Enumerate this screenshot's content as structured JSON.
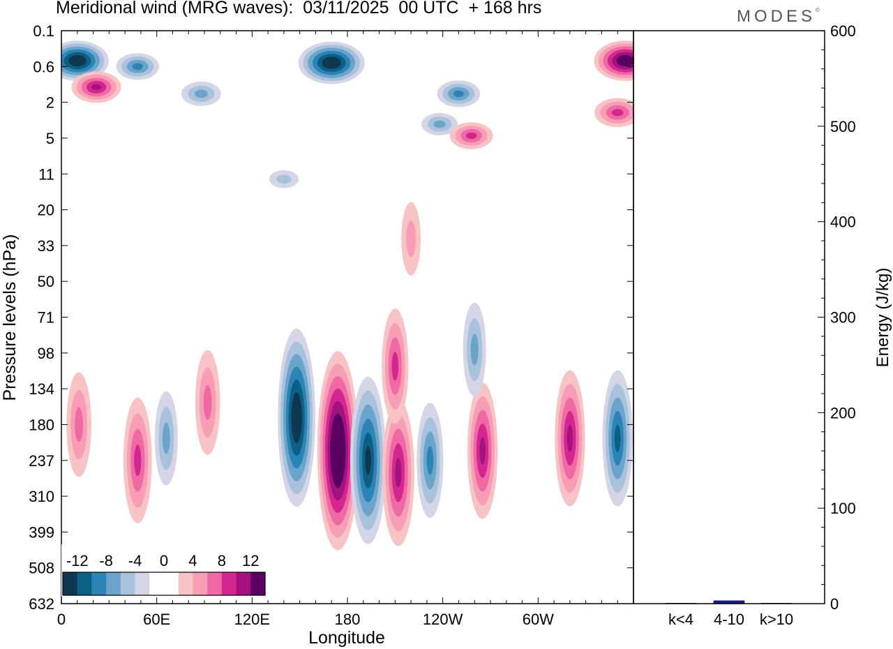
{
  "title": "Meridional wind (MRG waves):  03/11/2025  00 UTC  + 168 hrs",
  "logo": "MODES",
  "chart_data": [
    {
      "type": "heatmap",
      "title": "Meridional wind (MRG waves):  03/11/2025  00 UTC  + 168 hrs",
      "xlabel": "Longitude",
      "ylabel": "Pressure levels (hPa)",
      "x_ticks": [
        "0",
        "60E",
        "120E",
        "180",
        "120W",
        "60W"
      ],
      "x_tick_values": [
        0,
        60,
        120,
        180,
        240,
        300
      ],
      "xlim": [
        0,
        360
      ],
      "y_ticks": [
        "0.1",
        "0.6",
        "2",
        "5",
        "11",
        "20",
        "33",
        "50",
        "71",
        "98",
        "134",
        "180",
        "237",
        "310",
        "399",
        "508",
        "632"
      ],
      "colorbar_labels": [
        "-12",
        "-8",
        "-4",
        "0",
        "4",
        "8",
        "12"
      ],
      "colorbar_colors": [
        "#0d3850",
        "#0e5f86",
        "#2b84b6",
        "#6ba4cb",
        "#a9c2dc",
        "#d4d6e7",
        "#ffffff",
        "#ffffff",
        "#f8c3c4",
        "#f79db6",
        "#ef6aa5",
        "#d4268f",
        "#a3127f",
        "#5a0063"
      ],
      "cells": [
        {
          "lon": 10,
          "lev": 0.45,
          "value": -13
        },
        {
          "lon": 22,
          "lev": 1.2,
          "value": 9
        },
        {
          "lon": 48,
          "lev": 0.6,
          "value": -7
        },
        {
          "lon": 88,
          "lev": 1.5,
          "value": -6
        },
        {
          "lon": 170,
          "lev": 0.5,
          "value": -14
        },
        {
          "lon": 250,
          "lev": 1.5,
          "value": -7
        },
        {
          "lon": 238,
          "lev": 3.5,
          "value": -5
        },
        {
          "lon": 258,
          "lev": 4.7,
          "value": 7
        },
        {
          "lon": 355,
          "lev": 0.45,
          "value": 13
        },
        {
          "lon": 350,
          "lev": 2.6,
          "value": 8
        },
        {
          "lon": 11,
          "lev": 180,
          "value": 6
        },
        {
          "lon": 48,
          "lev": 237,
          "value": 8
        },
        {
          "lon": 66,
          "lev": 200,
          "value": -5
        },
        {
          "lon": 92,
          "lev": 150,
          "value": 6
        },
        {
          "lon": 148,
          "lev": 170,
          "value": -13
        },
        {
          "lon": 174,
          "lev": 220,
          "value": 15
        },
        {
          "lon": 193,
          "lev": 237,
          "value": -12
        },
        {
          "lon": 212,
          "lev": 260,
          "value": 10
        },
        {
          "lon": 232,
          "lev": 237,
          "value": -7
        },
        {
          "lon": 265,
          "lev": 220,
          "value": 9
        },
        {
          "lon": 320,
          "lev": 200,
          "value": 9
        },
        {
          "lon": 350,
          "lev": 200,
          "value": -9
        },
        {
          "lon": 210,
          "lev": 110,
          "value": 7
        },
        {
          "lon": 260,
          "lev": 95,
          "value": -5
        },
        {
          "lon": 220,
          "lev": 30,
          "value": 3
        },
        {
          "lon": 140,
          "lev": 12,
          "value": -3
        }
      ]
    },
    {
      "type": "bar",
      "ylabel": "Energy (J/kg)",
      "ylim": [
        0,
        600
      ],
      "y_ticks": [
        "0",
        "100",
        "200",
        "300",
        "400",
        "500",
        "600"
      ],
      "categories": [
        "k<4",
        "4-10",
        "k>10"
      ],
      "values": [
        0.5,
        3,
        0.5
      ],
      "bar_color": "#1a1aa0"
    }
  ]
}
